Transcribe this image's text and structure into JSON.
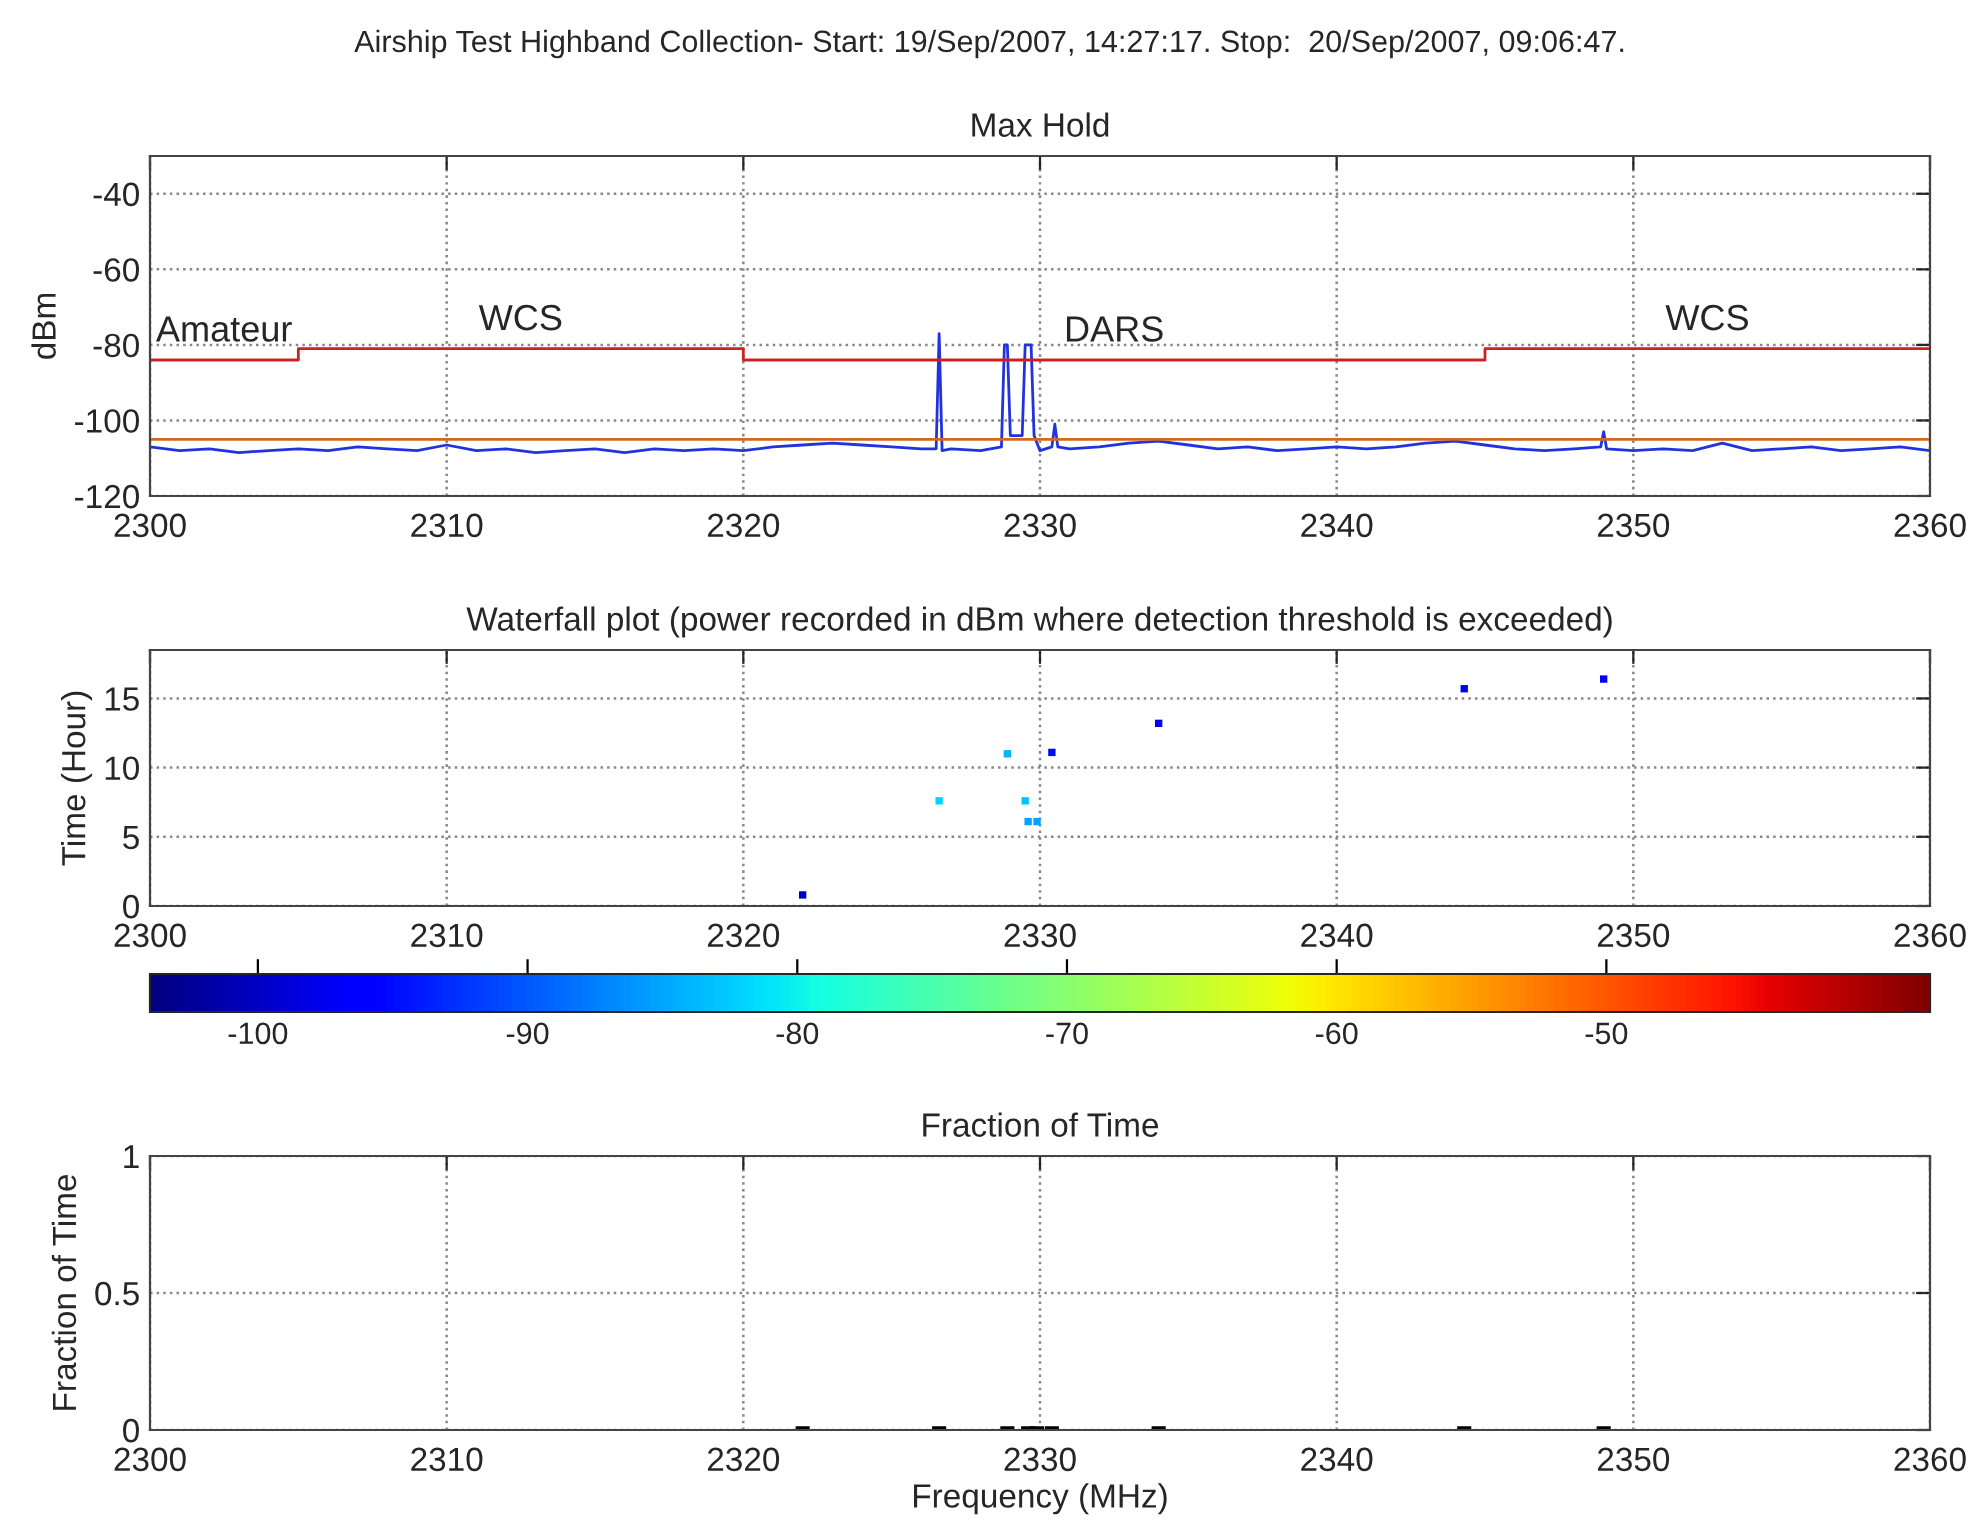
{
  "chart_data": [
    {
      "type": "line",
      "title": "Airship Test Highband Collection- Start: 19/Sep/2007, 14:27:17. Stop:  20/Sep/2007, 09:06:47.",
      "subtitle": "Max Hold",
      "ylabel": "dBm",
      "series": [
        {
          "color": "#2233dd",
          "x": [
            2300,
            2301,
            2302,
            2303,
            2304,
            2305,
            2306,
            2307,
            2308,
            2309,
            2310,
            2311,
            2312,
            2313,
            2314,
            2315,
            2316,
            2317,
            2318,
            2319,
            2320,
            2321,
            2322,
            2323,
            2324,
            2325,
            2326,
            2326.5,
            2326.6,
            2326.7,
            2327,
            2328,
            2328.7,
            2328.8,
            2328.9,
            2329.0,
            2329.4,
            2329.5,
            2329.7,
            2329.8,
            2330.0,
            2330.4,
            2330.5,
            2330.6,
            2331,
            2332,
            2333,
            2334,
            2335,
            2336,
            2337,
            2338,
            2339,
            2340,
            2341,
            2342,
            2343,
            2344,
            2345,
            2346,
            2347,
            2348,
            2348.9,
            2349,
            2349.1,
            2350,
            2351,
            2352,
            2353,
            2354,
            2355,
            2356,
            2357,
            2358,
            2359,
            2360
          ],
          "values": [
            -107,
            -108,
            -107.5,
            -108.5,
            -108,
            -107.5,
            -108,
            -107,
            -107.5,
            -108,
            -106.5,
            -108,
            -107.5,
            -108.5,
            -108,
            -107.5,
            -108.5,
            -107.5,
            -108,
            -107.5,
            -108,
            -107,
            -106.5,
            -106,
            -106.5,
            -107,
            -107.5,
            -107.5,
            -77,
            -108,
            -107.5,
            -108,
            -107,
            -80,
            -80,
            -104,
            -104,
            -80,
            -80,
            -104,
            -108,
            -107,
            -101,
            -107,
            -107.5,
            -107,
            -106,
            -105.5,
            -106.5,
            -107.5,
            -107,
            -108,
            -107.5,
            -107,
            -107.5,
            -107,
            -106,
            -105.5,
            -106.5,
            -107.5,
            -108,
            -107.5,
            -107,
            -103,
            -107.5,
            -108,
            -107.5,
            -108,
            -106,
            -108,
            -107.5,
            -107,
            -108,
            -107.5,
            -107,
            -108
          ]
        },
        {
          "color": "#cc2222",
          "x": [
            2300,
            2305,
            2305,
            2320,
            2320,
            2345,
            2345,
            2360
          ],
          "values": [
            -84,
            -84,
            -81,
            -81,
            -84,
            -84,
            -81,
            -81
          ]
        }
      ],
      "ref_lines": [
        {
          "axis": "y",
          "value": -105,
          "color": "#d2691e"
        }
      ],
      "annotations": [
        "Amateur",
        "WCS",
        "DARS",
        "WCS"
      ],
      "xlim": [
        2300,
        2360
      ],
      "xticks": [
        2300,
        2310,
        2320,
        2330,
        2340,
        2350,
        2360
      ],
      "ylim": [
        -120,
        -30
      ],
      "yticks": [
        -120,
        -100,
        -80,
        -60,
        -40
      ],
      "grid": true
    },
    {
      "type": "scatter",
      "subtitle": "Waterfall plot (power recorded in dBm where detection threshold is exceeded)",
      "ylabel": "Time (Hour)",
      "x": [
        2322,
        2326.6,
        2328.9,
        2329.5,
        2329.6,
        2329.9,
        2330.4,
        2334,
        2344.3,
        2349
      ],
      "values": [
        0.8,
        7.6,
        11,
        7.6,
        6.1,
        6.1,
        11.1,
        13.2,
        15.7,
        16.4
      ],
      "cvalues": [
        -100,
        -82,
        -84,
        -83,
        -85,
        -85,
        -95,
        -97,
        -98,
        -97
      ],
      "marker": "square",
      "clim": [
        -104,
        -38
      ],
      "cticks": [
        -100,
        -90,
        -80,
        -70,
        -60,
        -50
      ],
      "xlim": [
        2300,
        2360
      ],
      "xticks": [
        2300,
        2310,
        2320,
        2330,
        2340,
        2350,
        2360
      ],
      "ylim": [
        0,
        18.5
      ],
      "yticks": [
        0,
        5,
        10,
        15
      ],
      "grid": true
    },
    {
      "type": "bar",
      "subtitle": "Fraction of Time",
      "xlabel": "Frequency (MHz)",
      "ylabel": "Fraction of Time",
      "x": [
        2322,
        2326.6,
        2328.9,
        2329.6,
        2329.9,
        2330.4,
        2334,
        2344.3,
        2349
      ],
      "values": [
        0.01,
        0.01,
        0.01,
        0.01,
        0.01,
        0.01,
        0.01,
        0.01,
        0.01
      ],
      "color": "#000000",
      "xlim": [
        2300,
        2360
      ],
      "xticks": [
        2300,
        2310,
        2320,
        2330,
        2340,
        2350,
        2360
      ],
      "ylim": [
        0,
        1
      ],
      "yticks": [
        0,
        0.5,
        1
      ],
      "grid": true
    }
  ]
}
